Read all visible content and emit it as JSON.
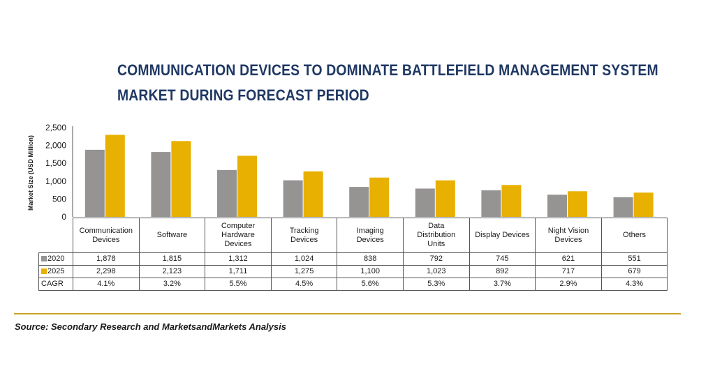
{
  "title_lines": [
    "COMMUNICATION DEVICES TO DOMINATE BATTLEFIELD MANAGEMENT SYSTEM",
    "MARKET DURING FORECAST PERIOD"
  ],
  "source": "Source: Secondary Research and MarketsandMarkets Analysis",
  "colors": {
    "title": "#1f3864",
    "s2020": "#969393",
    "s2025": "#e8b000",
    "rule": "#c9a227"
  },
  "chart_data": {
    "type": "bar",
    "title": "COMMUNICATION DEVICES TO DOMINATE BATTLEFIELD MANAGEMENT SYSTEM MARKET DURING FORECAST PERIOD",
    "ylabel": "Market Size (USD Million)",
    "xlabel": "",
    "ylim": [
      0,
      2500
    ],
    "yticks": [
      "0",
      "500",
      "1,000",
      "1,500",
      "2,000",
      "2,500"
    ],
    "ytick_values": [
      0,
      500,
      1000,
      1500,
      2000,
      2500
    ],
    "grid": false,
    "categories": [
      [
        "Communication",
        "Devices"
      ],
      [
        "Software"
      ],
      [
        "Computer",
        "Hardware",
        "Devices"
      ],
      [
        "Tracking",
        "Devices"
      ],
      [
        "Imaging",
        "Devices"
      ],
      [
        "Data",
        "Distribution",
        "Units"
      ],
      [
        "Display Devices"
      ],
      [
        "Night Vision",
        "Devices"
      ],
      [
        "Others"
      ]
    ],
    "series": [
      {
        "name": "2020",
        "color": "#969393",
        "values": [
          1878,
          1815,
          1312,
          1024,
          838,
          792,
          745,
          621,
          551
        ],
        "labels": [
          "1,878",
          "1,815",
          "1,312",
          "1,024",
          "838",
          "792",
          "745",
          "621",
          "551"
        ]
      },
      {
        "name": "2025",
        "color": "#e8b000",
        "values": [
          2298,
          2123,
          1711,
          1275,
          1100,
          1023,
          892,
          717,
          679
        ],
        "labels": [
          "2,298",
          "2,123",
          "1,711",
          "1,275",
          "1,100",
          "1,023",
          "892",
          "717",
          "679"
        ]
      }
    ],
    "cagr": {
      "name": "CAGR",
      "labels": [
        "4.1%",
        "3.2%",
        "5.5%",
        "4.5%",
        "5.6%",
        "5.3%",
        "3.7%",
        "2.9%",
        "4.3%"
      ]
    }
  }
}
